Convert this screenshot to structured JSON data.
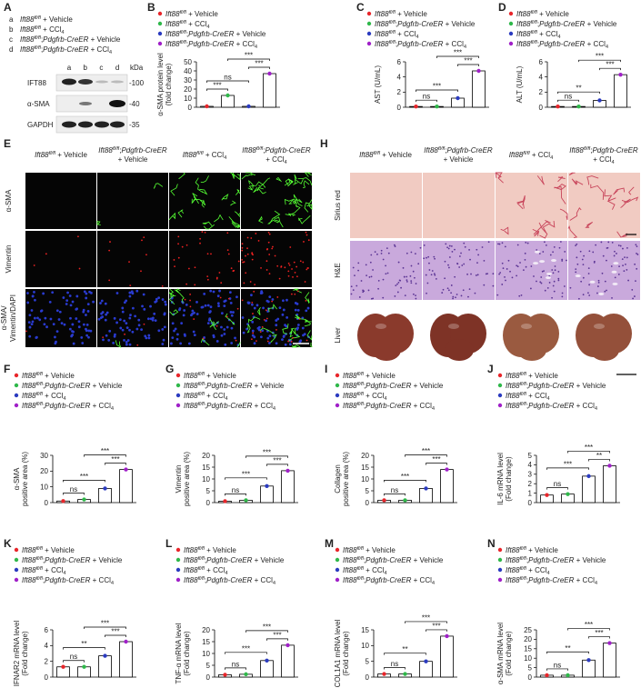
{
  "panel_a": {
    "letter": "A",
    "groups": [
      {
        "key": "a",
        "name": "Ift88fl/fl + Vehicle"
      },
      {
        "key": "b",
        "name": "Ift88fl/fl + CCl4"
      },
      {
        "key": "c",
        "name": "Ift88fl/fl;Pdgfrb-CreER + Vehicle"
      },
      {
        "key": "d",
        "name": "Ift88fl/fl;Pdgfrb-CreER + CCl4"
      }
    ],
    "lanes": [
      "a",
      "b",
      "c",
      "d"
    ],
    "unit": "kDa",
    "rows": [
      {
        "name": "IFT88",
        "marker": "-100"
      },
      {
        "name": "α-SMA",
        "marker": "-40"
      },
      {
        "name": "GAPDH",
        "marker": "-35"
      }
    ]
  },
  "panel_e": {
    "letter": "E",
    "columns": [
      [
        "Ift88fl/fl + Vehicle"
      ],
      [
        "Ift88fl/fl;Pdgfrb-CreER",
        "+ Vehicle"
      ],
      [
        "Ift88fl/fl + CCl4"
      ],
      [
        "Ift88fl/fl;Pdgfrb-CreER",
        "+ CCl4"
      ]
    ],
    "rows": [
      [
        "α-SMA"
      ],
      [
        "Vimentin"
      ],
      [
        "α-SMA/",
        "Vimentin/DAPI"
      ]
    ]
  },
  "panel_h": {
    "letter": "H",
    "columns": [
      [
        "Ift88fl/fl + Vehicle"
      ],
      [
        "Ift88fl/fl;Pdgfrb-CreER",
        "+ Vehicle"
      ],
      [
        "Ift88fl/fl + CCl4"
      ],
      [
        "Ift88fl/fl;Pdgfrb-CreER",
        "+ CCl4"
      ]
    ],
    "rows": [
      "Sirius red",
      "H&E",
      "Liver"
    ]
  },
  "chart_data": [
    {
      "type": "bar",
      "letter": "B",
      "series": [
        {
          "name": "Ift88fl/fl + Vehicle",
          "color": "#e8262b",
          "values": [
            1
          ]
        },
        {
          "name": "Ift88fl/fl + CCl4",
          "color": "#2fb84a",
          "values": [
            13
          ]
        },
        {
          "name": "Ift88fl/fl;Pdgfrb-CreER + Vehicle",
          "color": "#2b3bc0",
          "values": [
            1
          ]
        },
        {
          "name": "Ift88fl/fl;Pdgfrb-CreER + CCl4",
          "color": "#a020c8",
          "values": [
            37
          ]
        }
      ],
      "ylabel": [
        "α-SMA protein level",
        "(fold change)"
      ],
      "ylim": [
        0,
        50
      ],
      "yticks": [
        0,
        10,
        20,
        30,
        40,
        50
      ],
      "annotations": [
        "***",
        "ns",
        "***",
        "***"
      ]
    },
    {
      "type": "bar",
      "letter": "C",
      "series": [
        {
          "name": "Ift88fl/fl + Vehicle",
          "color": "#e8262b",
          "values": [
            0.1
          ]
        },
        {
          "name": "Ift88fl/fl;Pdgfrb-CreER + Vehicle",
          "color": "#2fb84a",
          "values": [
            0.1
          ]
        },
        {
          "name": "Ift88fl/fl + CCl4",
          "color": "#2b3bc0",
          "values": [
            1.2
          ]
        },
        {
          "name": "Ift88fl/fl;Pdgfrb-CreER + CCl4",
          "color": "#a020c8",
          "values": [
            4.8
          ]
        }
      ],
      "ylabel": [
        "AST (U/mL)"
      ],
      "ylim": [
        0,
        6
      ],
      "yticks": [
        0,
        2,
        4,
        6
      ],
      "annotations": [
        "ns",
        "***",
        "***",
        "***"
      ]
    },
    {
      "type": "bar",
      "letter": "D",
      "series": [
        {
          "name": "Ift88fl/fl + Vehicle",
          "color": "#e8262b",
          "values": [
            0.1
          ]
        },
        {
          "name": "Ift88fl/fl;Pdgfrb-CreER + Vehicle",
          "color": "#2fb84a",
          "values": [
            0.1
          ]
        },
        {
          "name": "Ift88fl/fl + CCl4",
          "color": "#2b3bc0",
          "values": [
            0.9
          ]
        },
        {
          "name": "Ift88fl/fl;Pdgfrb-CreER + CCl4",
          "color": "#a020c8",
          "values": [
            4.3
          ]
        }
      ],
      "ylabel": [
        "ALT (U/mL)"
      ],
      "ylim": [
        0,
        6
      ],
      "yticks": [
        0,
        2,
        4,
        6
      ],
      "annotations": [
        "ns",
        "**",
        "***",
        "***"
      ]
    },
    {
      "type": "bar",
      "letter": "F",
      "series": [
        {
          "name": "Ift88fl/fl + Vehicle",
          "color": "#e8262b",
          "values": [
            1
          ]
        },
        {
          "name": "Ift88fl/fl;Pdgfrb-CreER + Vehicle",
          "color": "#2fb84a",
          "values": [
            2
          ]
        },
        {
          "name": "Ift88fl/fl + CCl4",
          "color": "#2b3bc0",
          "values": [
            9
          ]
        },
        {
          "name": "Ift88fl/fl;Pdgfrb-CreER + CCl4",
          "color": "#a020c8",
          "values": [
            21
          ]
        }
      ],
      "ylabel": [
        "α-SMA",
        "positive area (%)"
      ],
      "ylim": [
        0,
        30
      ],
      "yticks": [
        0,
        10,
        20,
        30
      ],
      "annotations": [
        "ns",
        "***",
        "***",
        "***"
      ]
    },
    {
      "type": "bar",
      "letter": "G",
      "series": [
        {
          "name": "Ift88fl/fl + Vehicle",
          "color": "#e8262b",
          "values": [
            0.6
          ]
        },
        {
          "name": "Ift88fl/fl;Pdgfrb-CreER + Vehicle",
          "color": "#2fb84a",
          "values": [
            1
          ]
        },
        {
          "name": "Ift88fl/fl + CCl4",
          "color": "#2b3bc0",
          "values": [
            7
          ]
        },
        {
          "name": "Ift88fl/fl;Pdgfrb-CreER + CCl4",
          "color": "#a020c8",
          "values": [
            13.5
          ]
        }
      ],
      "ylabel": [
        "Vimentin",
        "positive area (%)"
      ],
      "ylim": [
        0,
        20
      ],
      "yticks": [
        0,
        5,
        10,
        15,
        20
      ],
      "annotations": [
        "ns",
        "***",
        "***",
        "***"
      ]
    },
    {
      "type": "bar",
      "letter": "I",
      "series": [
        {
          "name": "Ift88fl/fl + Vehicle",
          "color": "#e8262b",
          "values": [
            1
          ]
        },
        {
          "name": "Ift88fl/fl;Pdgfrb-CreER + Vehicle",
          "color": "#2fb84a",
          "values": [
            1
          ]
        },
        {
          "name": "Ift88fl/fl + CCl4",
          "color": "#2b3bc0",
          "values": [
            6
          ]
        },
        {
          "name": "Ift88fl/fl;Pdgfrb-CreER + CCl4",
          "color": "#a020c8",
          "values": [
            14
          ]
        }
      ],
      "ylabel": [
        "Collagen",
        "positive area (%)"
      ],
      "ylim": [
        0,
        20
      ],
      "yticks": [
        0,
        5,
        10,
        15,
        20
      ],
      "annotations": [
        "ns",
        "***",
        "***",
        "***"
      ]
    },
    {
      "type": "bar",
      "letter": "J",
      "series": [
        {
          "name": "Ift88fl/fl + Vehicle",
          "color": "#e8262b",
          "values": [
            0.8
          ]
        },
        {
          "name": "Ift88fl/fl;Pdgfrb-CreER + Vehicle",
          "color": "#2fb84a",
          "values": [
            0.9
          ]
        },
        {
          "name": "Ift88fl/fl + CCl4",
          "color": "#2b3bc0",
          "values": [
            2.8
          ]
        },
        {
          "name": "Ift88fl/fl;Pdgfrb-CreER + CCl4",
          "color": "#a020c8",
          "values": [
            3.9
          ]
        }
      ],
      "ylabel": [
        "IL-6 mRNA level",
        "(Fold change)"
      ],
      "ylim": [
        0,
        5
      ],
      "yticks": [
        0,
        1,
        2,
        3,
        4,
        5
      ],
      "annotations": [
        "ns",
        "***",
        "**",
        "***"
      ]
    },
    {
      "type": "bar",
      "letter": "K",
      "series": [
        {
          "name": "Ift88fl/fl + Vehicle",
          "color": "#e8262b",
          "values": [
            1.3
          ]
        },
        {
          "name": "Ift88fl/fl;Pdgfrb-CreER + Vehicle",
          "color": "#2fb84a",
          "values": [
            1.3
          ]
        },
        {
          "name": "Ift88fl/fl + CCl4",
          "color": "#2b3bc0",
          "values": [
            2.7
          ]
        },
        {
          "name": "Ift88fl/fl;Pdgfrb-CreER + CCl4",
          "color": "#a020c8",
          "values": [
            4.5
          ]
        }
      ],
      "ylabel": [
        "IFNAR2 mRNA level",
        "(Fold change)"
      ],
      "ylim": [
        0,
        6
      ],
      "yticks": [
        0,
        2,
        4,
        6
      ],
      "annotations": [
        "ns",
        "**",
        "***",
        "***"
      ]
    },
    {
      "type": "bar",
      "letter": "L",
      "series": [
        {
          "name": "Ift88fl/fl + Vehicle",
          "color": "#e8262b",
          "values": [
            1
          ]
        },
        {
          "name": "Ift88fl/fl;Pdgfrb-CreER + Vehicle",
          "color": "#2fb84a",
          "values": [
            1.2
          ]
        },
        {
          "name": "Ift88fl/fl + CCl4",
          "color": "#2b3bc0",
          "values": [
            7
          ]
        },
        {
          "name": "Ift88fl/fl;Pdgfrb-CreER + CCl4",
          "color": "#a020c8",
          "values": [
            13.5
          ]
        }
      ],
      "ylabel": [
        "TNF-α mRNA level",
        "(Fold change)"
      ],
      "ylim": [
        0,
        20
      ],
      "yticks": [
        0,
        5,
        10,
        15,
        20
      ],
      "annotations": [
        "ns",
        "***",
        "***",
        "***"
      ]
    },
    {
      "type": "bar",
      "letter": "M",
      "series": [
        {
          "name": "Ift88fl/fl + Vehicle",
          "color": "#e8262b",
          "values": [
            1
          ]
        },
        {
          "name": "Ift88fl/fl;Pdgfrb-CreER + Vehicle",
          "color": "#2fb84a",
          "values": [
            1
          ]
        },
        {
          "name": "Ift88fl/fl + CCl4",
          "color": "#2b3bc0",
          "values": [
            5
          ]
        },
        {
          "name": "Ift88fl/fl;Pdgfrb-CreER + CCl4",
          "color": "#a020c8",
          "values": [
            13
          ]
        }
      ],
      "ylabel": [
        "COL1A1 mRNA level",
        "(Fold change)"
      ],
      "ylim": [
        0,
        15
      ],
      "yticks": [
        0,
        5,
        10,
        15
      ],
      "annotations": [
        "ns",
        "**",
        "***",
        "***"
      ]
    },
    {
      "type": "bar",
      "letter": "N",
      "series": [
        {
          "name": "Ift88fl/fl + Vehicle",
          "color": "#e8262b",
          "values": [
            1
          ]
        },
        {
          "name": "Ift88fl/fl;Pdgfrb-CreER + Vehicle",
          "color": "#2fb84a",
          "values": [
            1
          ]
        },
        {
          "name": "Ift88fl/fl + CCl4",
          "color": "#2b3bc0",
          "values": [
            9
          ]
        },
        {
          "name": "Ift88fl/fl;Pdgfrb-CreER + CCl4",
          "color": "#a020c8",
          "values": [
            18
          ]
        }
      ],
      "ylabel": [
        "α-SMA mRNA level",
        "(Fold change)"
      ],
      "ylim": [
        0,
        25
      ],
      "yticks": [
        0,
        5,
        10,
        15,
        20,
        25
      ],
      "annotations": [
        "ns",
        "**",
        "***",
        "***"
      ]
    }
  ]
}
